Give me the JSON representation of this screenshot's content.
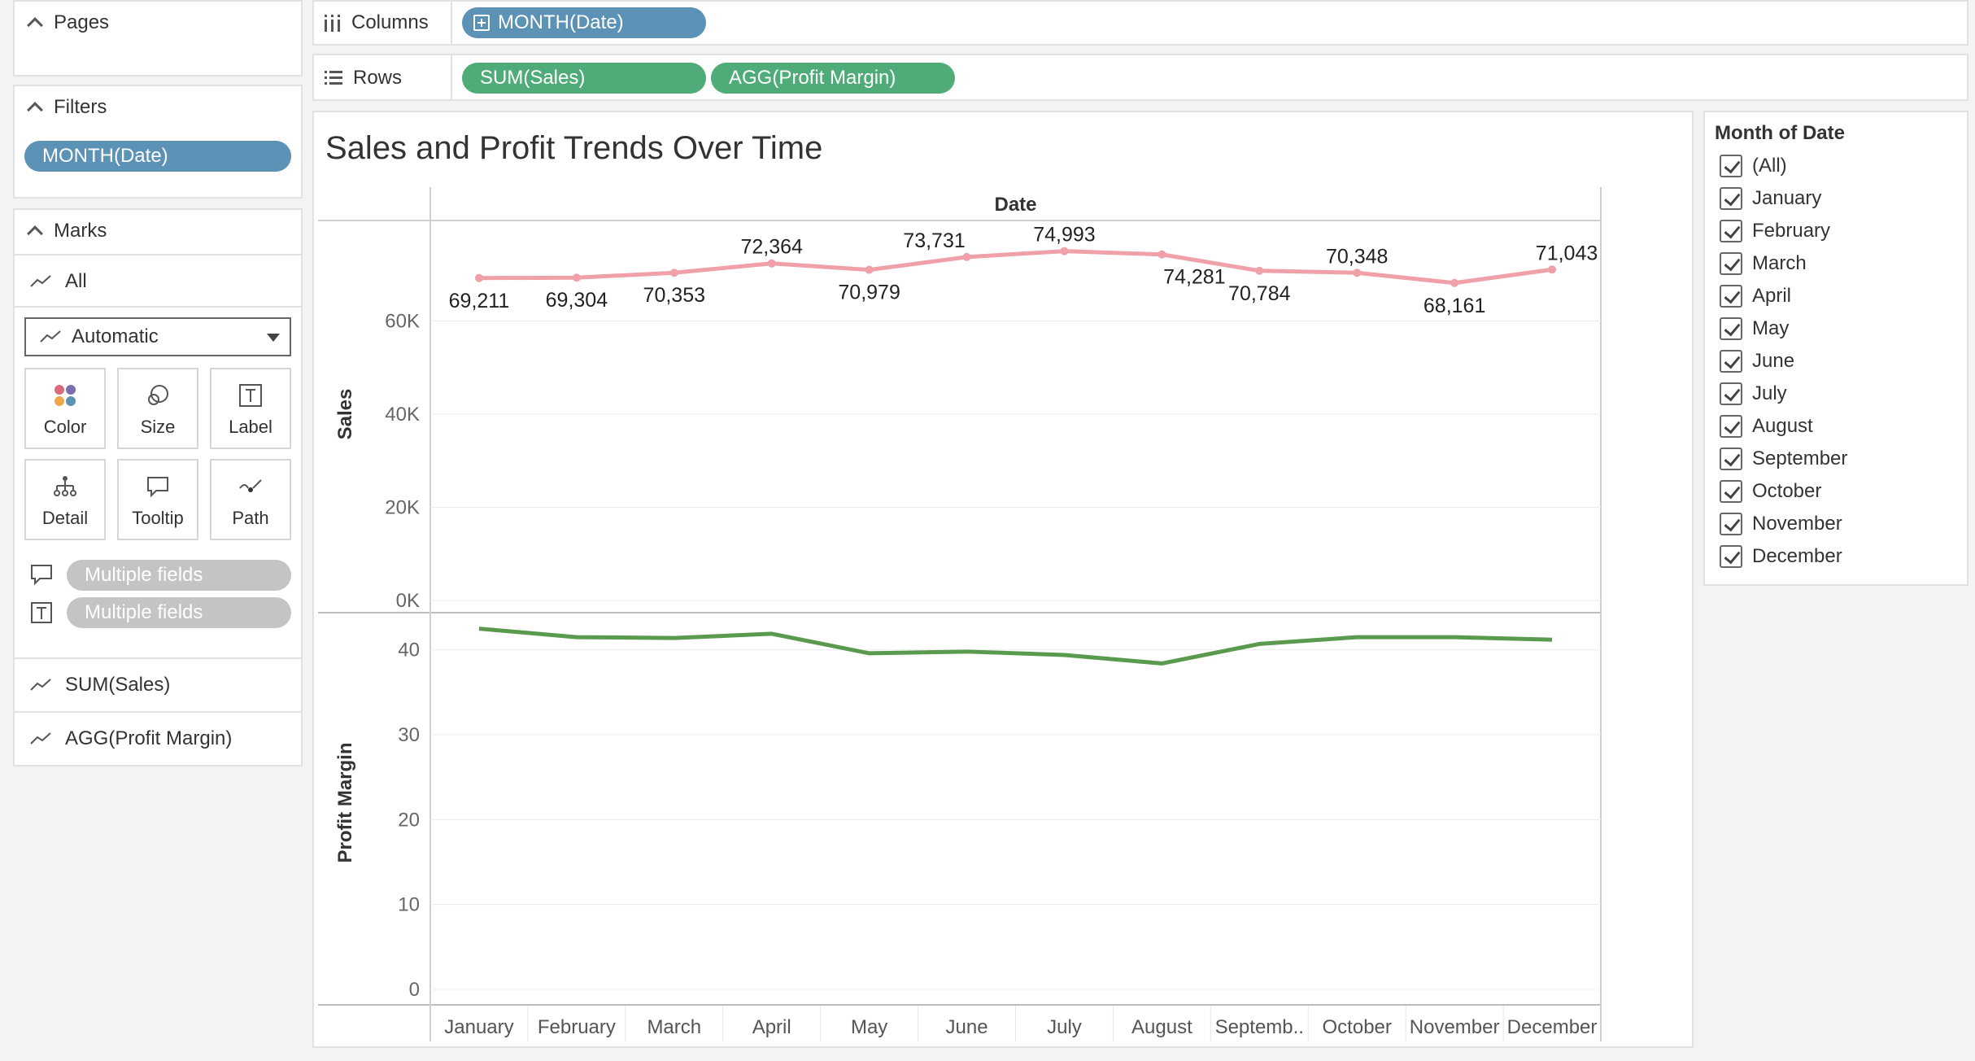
{
  "pages": {
    "title": "Pages"
  },
  "filters": {
    "title": "Filters",
    "pill": "MONTH(Date)"
  },
  "marks": {
    "title": "Marks",
    "all_label": "All",
    "mark_type": "Automatic",
    "buttons": {
      "color": "Color",
      "size": "Size",
      "label": "Label",
      "detail": "Detail",
      "tooltip": "Tooltip",
      "path": "Path"
    },
    "tooltip_fields": "Multiple fields",
    "label_fields": "Multiple fields",
    "sales_card": "SUM(Sales)",
    "profit_card": "AGG(Profit Margin)"
  },
  "shelves": {
    "columns_label": "Columns",
    "columns_pill": "MONTH(Date)",
    "rows_label": "Rows",
    "rows_pills": [
      "SUM(Sales)",
      "AGG(Profit Margin)"
    ]
  },
  "legend": {
    "title": "Month of Date",
    "items": [
      "(All)",
      "January",
      "February",
      "March",
      "April",
      "May",
      "June",
      "July",
      "August",
      "September",
      "October",
      "November",
      "December"
    ]
  },
  "colors": {
    "sales_line": "#f0a0a8",
    "profit_line": "#5a9a4e",
    "pill_blue": "#5b92b5",
    "pill_green": "#4fac78"
  },
  "chart_data": {
    "type": "line",
    "title": "Sales and Profit Trends Over Time",
    "header": "Date",
    "categories": [
      "January",
      "February",
      "March",
      "April",
      "May",
      "June",
      "July",
      "August",
      "September",
      "October",
      "November",
      "December"
    ],
    "category_labels": [
      "January",
      "February",
      "March",
      "April",
      "May",
      "June",
      "July",
      "August",
      "Septemb..",
      "October",
      "November",
      "December"
    ],
    "series": [
      {
        "name": "Sales",
        "values": [
          69211,
          69304,
          70353,
          72364,
          70979,
          73731,
          74993,
          74281,
          70784,
          70348,
          68161,
          71043
        ],
        "labels": [
          "69,211",
          "69,304",
          "70,353",
          "72,364",
          "70,979",
          "73,731",
          "74,993",
          "74,281",
          "70,784",
          "70,348",
          "68,161",
          "71,043"
        ],
        "ylabel": "Sales",
        "ylim": [
          0,
          80000
        ],
        "ticks": [
          "0K",
          "20K",
          "40K",
          "60K"
        ],
        "tick_values": [
          0,
          20000,
          40000,
          60000
        ]
      },
      {
        "name": "Profit Margin",
        "values": [
          42.5,
          41.5,
          41.4,
          41.9,
          39.6,
          39.8,
          39.4,
          38.4,
          40.7,
          41.5,
          41.5,
          41.2
        ],
        "ylabel": "Profit Margin",
        "ylim": [
          0,
          44
        ],
        "ticks": [
          "0",
          "10",
          "20",
          "30",
          "40"
        ],
        "tick_values": [
          0,
          10,
          20,
          30,
          40
        ]
      }
    ],
    "grid": true
  }
}
